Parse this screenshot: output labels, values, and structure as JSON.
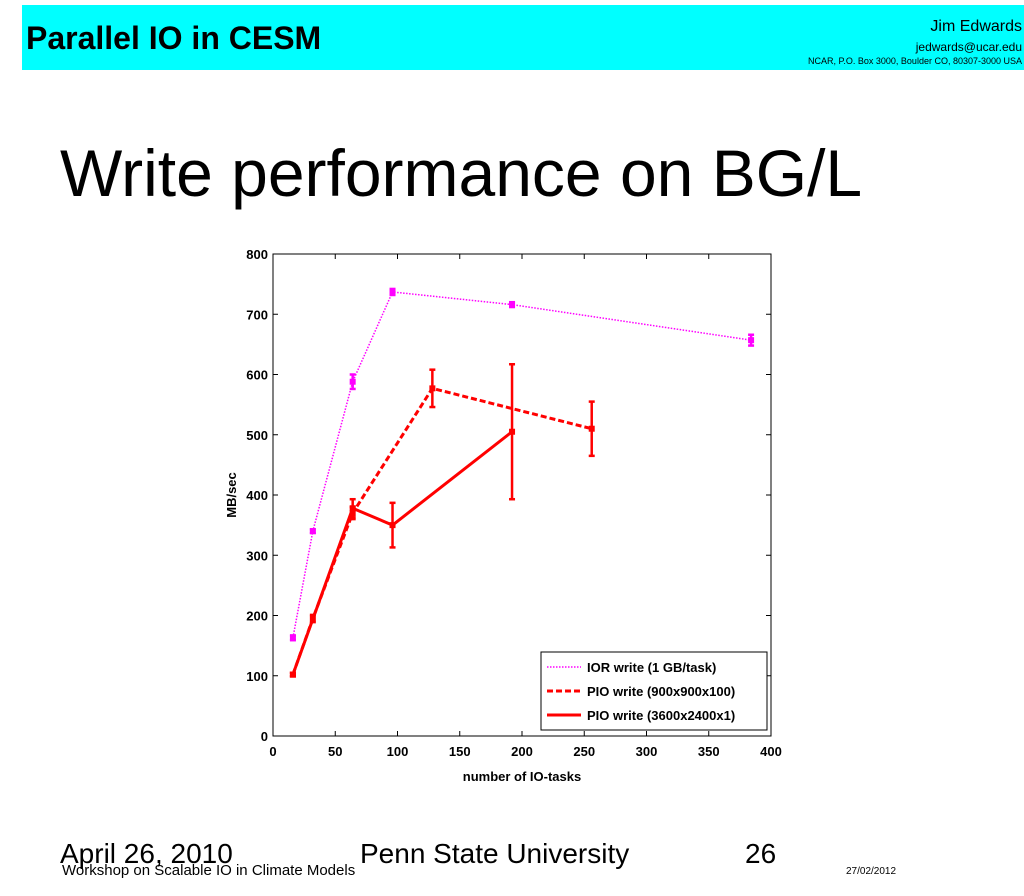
{
  "header": {
    "title": "Parallel IO in CESM",
    "author": "Jim Edwards",
    "email": "jedwards@ucar.edu",
    "address": "NCAR, P.O. Box 3000, Boulder CO, 80307-3000 USA"
  },
  "slide_title": "Write performance on BG/L",
  "chart_data": {
    "type": "line",
    "x_label": "number of IO-tasks",
    "y_label": "MB/sec",
    "xlim": [
      0,
      400
    ],
    "xticks": [
      0,
      50,
      100,
      150,
      200,
      250,
      300,
      350,
      400
    ],
    "ylim": [
      0,
      800
    ],
    "yticks": [
      0,
      100,
      200,
      300,
      400,
      500,
      600,
      700,
      800
    ],
    "legend": "lower right",
    "series": [
      {
        "name": "IOR write (1 GB/task)",
        "color": "#ff00ff",
        "style": "dotted",
        "x": [
          16,
          32,
          64,
          96,
          192,
          384
        ],
        "values": [
          163,
          340,
          588,
          737,
          716,
          657
        ],
        "errors": [
          4,
          3,
          12,
          5,
          4,
          9
        ]
      },
      {
        "name": "PIO write (900x900x100)",
        "color": "#ff0000",
        "style": "dashed",
        "x": [
          16,
          32,
          64,
          128,
          256
        ],
        "values": [
          102,
          195,
          370,
          577,
          510
        ],
        "errors": [
          3,
          6,
          10,
          31,
          45
        ]
      },
      {
        "name": "PIO write (3600x2400x1)",
        "color": "#ff0000",
        "style": "solid",
        "x": [
          16,
          64,
          96,
          192
        ],
        "values": [
          102,
          378,
          350,
          505
        ],
        "errors": [
          3,
          15,
          37,
          112
        ]
      }
    ]
  },
  "footer": {
    "date": "April 26, 2010",
    "venue": "Penn State University",
    "page": "26",
    "workshop": "Workshop on Scalable IO in Climate Models",
    "print_date": "27/02/2012"
  }
}
